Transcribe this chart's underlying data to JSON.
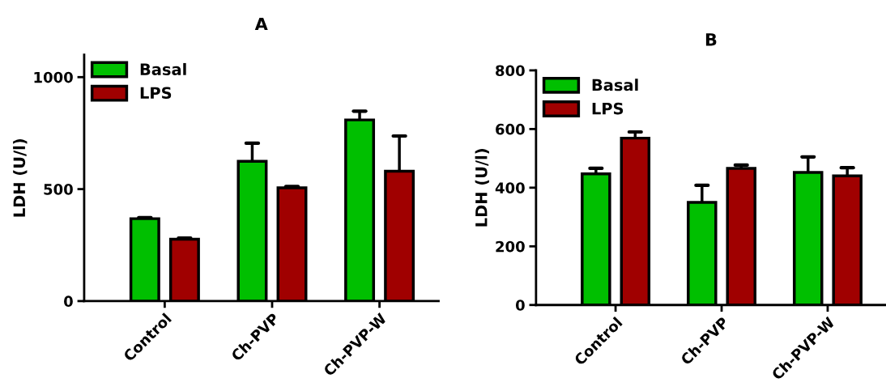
{
  "chart_data": [
    {
      "type": "bar",
      "title": "A",
      "ylabel": "LDH (U/l)",
      "categories": [
        "Control",
        "Ch-PVP",
        "Ch-PVP-W"
      ],
      "ylim": [
        0,
        1100
      ],
      "yticks": [
        0,
        500,
        1000
      ],
      "legend": "top left",
      "series": [
        {
          "name": "Basal",
          "color": "#00bf00",
          "values": [
            368,
            624,
            809
          ],
          "errors": [
            [
              368,
              373
            ],
            [
              624,
              705
            ],
            [
              809,
              848
            ]
          ]
        },
        {
          "name": "LPS",
          "color": "#a00000",
          "values": [
            276,
            506,
            580
          ],
          "errors": [
            [
              276,
              281
            ],
            [
              506,
              512
            ],
            [
              580,
              737
            ]
          ]
        }
      ]
    },
    {
      "type": "bar",
      "title": "B",
      "ylabel": "LDH (U/l)",
      "categories": [
        "Control",
        "Ch-PVP",
        "Ch-PVP-W"
      ],
      "ylim": [
        0,
        800
      ],
      "yticks": [
        0,
        200,
        400,
        600,
        800
      ],
      "legend": "top left",
      "series": [
        {
          "name": "Basal",
          "color": "#00bf00",
          "values": [
            447,
            350,
            452
          ],
          "errors": [
            [
              447,
              466
            ],
            [
              350,
              408
            ],
            [
              452,
              505
            ]
          ]
        },
        {
          "name": "LPS",
          "color": "#a00000",
          "values": [
            569,
            466,
            440
          ],
          "errors": [
            [
              569,
              590
            ],
            [
              466,
              477
            ],
            [
              440,
              468
            ]
          ]
        }
      ]
    }
  ]
}
